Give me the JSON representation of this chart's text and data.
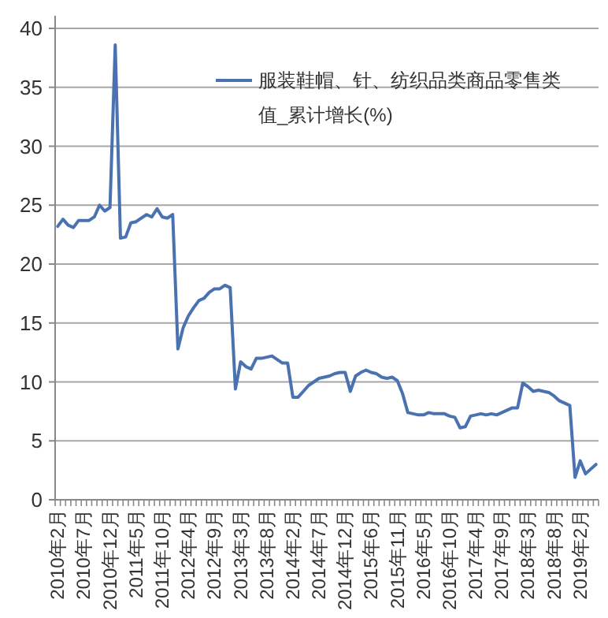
{
  "chart_data": {
    "type": "line",
    "categories": [
      "2010年2月",
      null,
      null,
      null,
      null,
      "2010年7月",
      null,
      null,
      null,
      null,
      "2010年12月",
      null,
      null,
      null,
      null,
      "2011年5月",
      null,
      null,
      null,
      null,
      "2011年10月",
      null,
      null,
      null,
      null,
      "2012年4月",
      null,
      null,
      null,
      null,
      "2012年9月",
      null,
      null,
      null,
      null,
      "2013年3月",
      null,
      null,
      null,
      null,
      "2013年8月",
      null,
      null,
      null,
      null,
      "2014年2月",
      null,
      null,
      null,
      null,
      "2014年7月",
      null,
      null,
      null,
      null,
      "2014年12月",
      null,
      null,
      null,
      null,
      "2015年6月",
      null,
      null,
      null,
      null,
      "2015年11月",
      null,
      null,
      null,
      null,
      "2016年5月",
      null,
      null,
      null,
      null,
      "2016年10月",
      null,
      null,
      null,
      null,
      "2017年4月",
      null,
      null,
      null,
      null,
      "2017年9月",
      null,
      null,
      null,
      null,
      "2018年3月",
      null,
      null,
      null,
      null,
      "2018年8月",
      null,
      null,
      null,
      null,
      "2019年2月",
      null,
      null,
      null
    ],
    "series": [
      {
        "name": "服装鞋帽、针、纺织品类商品零售类值_累计增长(%)",
        "color": "#4a72b0",
        "values": [
          23.2,
          23.8,
          23.3,
          23.1,
          23.7,
          23.7,
          23.7,
          24.0,
          25.0,
          24.5,
          24.8,
          38.6,
          22.2,
          22.3,
          23.5,
          23.6,
          23.9,
          24.2,
          24.0,
          24.7,
          24.0,
          23.9,
          24.2,
          12.8,
          14.6,
          15.6,
          16.3,
          16.9,
          17.1,
          17.6,
          17.9,
          17.9,
          18.2,
          18.0,
          9.4,
          11.7,
          11.3,
          11.1,
          12.0,
          12.0,
          12.1,
          12.2,
          11.9,
          11.6,
          11.6,
          8.7,
          8.7,
          9.2,
          9.7,
          10.0,
          10.3,
          10.4,
          10.5,
          10.7,
          10.8,
          10.8,
          9.2,
          10.5,
          10.8,
          11.0,
          10.8,
          10.7,
          10.4,
          10.3,
          10.4,
          10.1,
          9.0,
          7.4,
          7.3,
          7.2,
          7.2,
          7.4,
          7.3,
          7.3,
          7.3,
          7.1,
          7.0,
          6.1,
          6.2,
          7.1,
          7.2,
          7.3,
          7.2,
          7.3,
          7.2,
          7.4,
          7.6,
          7.8,
          7.8,
          9.9,
          9.6,
          9.2,
          9.3,
          9.2,
          9.1,
          8.8,
          8.4,
          8.2,
          8.0,
          1.9,
          3.3,
          2.2,
          2.6,
          3.0
        ]
      }
    ],
    "ylim": [
      0,
      40
    ],
    "yticks": [
      0,
      5,
      10,
      15,
      20,
      25,
      30,
      35,
      40
    ],
    "grid": "y",
    "legend": "top right"
  }
}
